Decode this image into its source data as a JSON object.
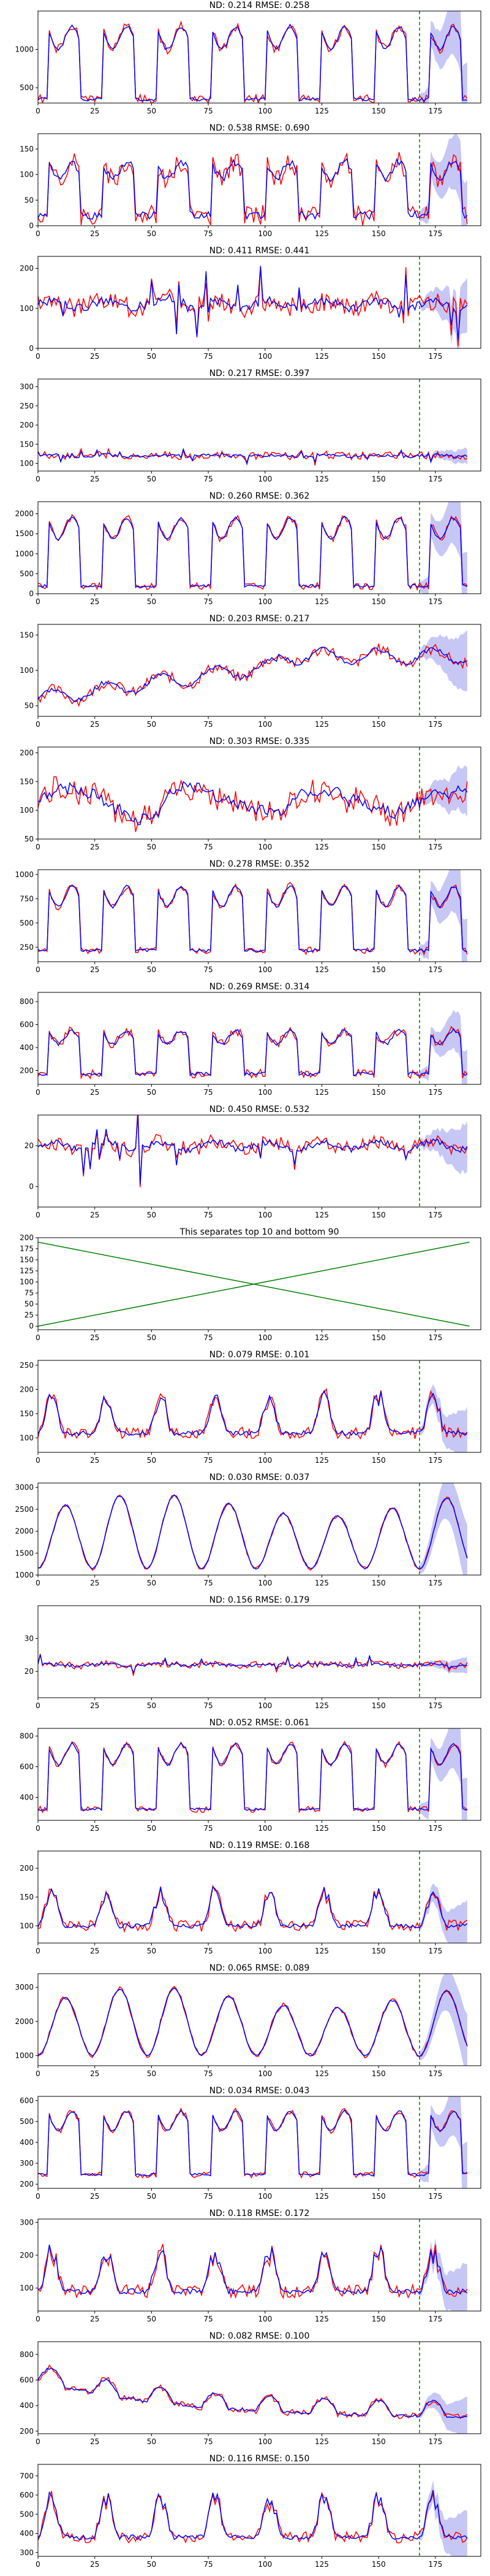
{
  "figure": {
    "title": ""
  },
  "colors": {
    "actual": "#ff0000",
    "forecast": "#0000ff",
    "band": "#9999ee",
    "split": "#008000",
    "separator": "#008000"
  },
  "chart_data": [
    {
      "type": "line",
      "title": "ND:  0.214 RMSE:  0.258",
      "xlim": [
        0,
        195
      ],
      "ylim": [
        300,
        1500
      ],
      "xticks": [
        0,
        25,
        50,
        75,
        100,
        125,
        150,
        175,
        200
      ],
      "yticks": [
        500,
        1000
      ],
      "shape": "square",
      "base": 300,
      "amp": 1000,
      "noise": 60,
      "forecast_start": 168,
      "seed": 1
    },
    {
      "type": "line",
      "title": "ND:  0.538 RMSE:  0.690",
      "xlim": [
        0,
        195
      ],
      "ylim": [
        0,
        180
      ],
      "xticks": [
        0,
        25,
        50,
        75,
        100,
        125,
        150,
        175,
        200
      ],
      "yticks": [
        0,
        50,
        100,
        150
      ],
      "shape": "square",
      "base": 15,
      "amp": 110,
      "noise": 20,
      "forecast_start": 168,
      "seed": 2
    },
    {
      "type": "line",
      "title": "ND:  0.411 RMSE:  0.441",
      "xlim": [
        0,
        195
      ],
      "ylim": [
        0,
        230
      ],
      "xticks": [
        0,
        25,
        50,
        75,
        100,
        125,
        150,
        175,
        200
      ],
      "yticks": [
        0,
        100,
        200
      ],
      "shape": "flat",
      "base": 110,
      "amp": 90,
      "noise": 25,
      "forecast_start": 168,
      "seed": 3
    },
    {
      "type": "line",
      "title": "ND:  0.217 RMSE:  0.397",
      "xlim": [
        0,
        195
      ],
      "ylim": [
        80,
        320
      ],
      "xticks": [
        0,
        25,
        50,
        75,
        100,
        125,
        150,
        175,
        200
      ],
      "yticks": [
        100,
        150,
        200,
        250,
        300
      ],
      "shape": "flat",
      "base": 120,
      "amp": 20,
      "noise": 10,
      "forecast_start": 168,
      "seed": 4
    },
    {
      "type": "line",
      "title": "ND:  0.260 RMSE:  0.362",
      "xlim": [
        0,
        195
      ],
      "ylim": [
        0,
        2300
      ],
      "xticks": [
        0,
        25,
        50,
        75,
        100,
        125,
        150,
        175,
        200
      ],
      "yticks": [
        0,
        500,
        1000,
        1500,
        2000
      ],
      "shape": "square",
      "base": 100,
      "amp": 1800,
      "noise": 90,
      "forecast_start": 168,
      "seed": 5
    },
    {
      "type": "line",
      "title": "ND:  0.203 RMSE:  0.217",
      "xlim": [
        0,
        195
      ],
      "ylim": [
        35,
        165
      ],
      "xticks": [
        0,
        25,
        50,
        75,
        100,
        125,
        150,
        175,
        200
      ],
      "yticks": [
        50,
        100,
        150
      ],
      "shape": "trend",
      "base": 60,
      "amp": 80,
      "noise": 8,
      "forecast_start": 168,
      "seed": 6
    },
    {
      "type": "line",
      "title": "ND:  0.303 RMSE:  0.335",
      "xlim": [
        0,
        195
      ],
      "ylim": [
        50,
        210
      ],
      "xticks": [
        0,
        25,
        50,
        75,
        100,
        125,
        150,
        175,
        200
      ],
      "yticks": [
        50,
        100,
        150,
        200
      ],
      "shape": "noisy",
      "base": 120,
      "amp": 40,
      "noise": 22,
      "forecast_start": 168,
      "seed": 7
    },
    {
      "type": "line",
      "title": "ND:  0.278 RMSE:  0.352",
      "xlim": [
        0,
        195
      ],
      "ylim": [
        100,
        1050
      ],
      "xticks": [
        0,
        25,
        50,
        75,
        100,
        125,
        150,
        175,
        200
      ],
      "yticks": [
        250,
        500,
        750,
        1000
      ],
      "shape": "square",
      "base": 180,
      "amp": 700,
      "noise": 40,
      "forecast_start": 168,
      "seed": 8
    },
    {
      "type": "line",
      "title": "ND:  0.269 RMSE:  0.314",
      "xlim": [
        0,
        195
      ],
      "ylim": [
        80,
        880
      ],
      "xticks": [
        0,
        25,
        50,
        75,
        100,
        125,
        150,
        175,
        200
      ],
      "yticks": [
        200,
        400,
        600,
        800
      ],
      "shape": "square",
      "base": 150,
      "amp": 400,
      "noise": 40,
      "forecast_start": 168,
      "seed": 9
    },
    {
      "type": "line",
      "title": "ND:  0.450 RMSE:  0.532",
      "xlim": [
        0,
        195
      ],
      "ylim": [
        -10,
        35
      ],
      "xticks": [
        0,
        25,
        50,
        75,
        100,
        125,
        150,
        175,
        200
      ],
      "yticks": [
        0,
        20
      ],
      "shape": "flat",
      "base": 20,
      "amp": 18,
      "noise": 4,
      "forecast_start": 168,
      "seed": 10
    },
    {
      "type": "line",
      "title": "This separates top 10 and bottom 90",
      "xlim": [
        0,
        195
      ],
      "ylim": [
        -8,
        200
      ],
      "xticks": [
        0,
        25,
        50,
        75,
        100,
        125,
        150,
        175,
        200
      ],
      "yticks": [
        0,
        25,
        50,
        75,
        100,
        125,
        150,
        175,
        200
      ],
      "shape": "separator",
      "forecast_start": null,
      "seed": 11
    },
    {
      "type": "line",
      "title": "ND:  0.079 RMSE:  0.101",
      "xlim": [
        0,
        195
      ],
      "ylim": [
        70,
        260
      ],
      "xticks": [
        0,
        25,
        50,
        75,
        100,
        125,
        150,
        175,
        200
      ],
      "yticks": [
        100,
        150,
        200,
        250
      ],
      "shape": "peaky",
      "base": 110,
      "amp": 90,
      "noise": 12,
      "forecast_start": 168,
      "seed": 12
    },
    {
      "type": "line",
      "title": "ND:  0.030 RMSE:  0.037",
      "xlim": [
        0,
        195
      ],
      "ylim": [
        1000,
        3100
      ],
      "xticks": [
        0,
        25,
        50,
        75,
        100,
        125,
        150,
        175,
        200
      ],
      "yticks": [
        1000,
        1500,
        2000,
        2500,
        3000
      ],
      "shape": "smooth",
      "base": 1150,
      "amp": 1700,
      "noise": 40,
      "forecast_start": 168,
      "seed": 13
    },
    {
      "type": "line",
      "title": "ND:  0.156 RMSE:  0.179",
      "xlim": [
        0,
        195
      ],
      "ylim": [
        12,
        40
      ],
      "xticks": [
        0,
        25,
        50,
        75,
        100,
        125,
        150,
        175,
        200
      ],
      "yticks": [
        20,
        30
      ],
      "shape": "flat",
      "base": 22,
      "amp": 3,
      "noise": 1,
      "forecast_start": 168,
      "seed": 14
    },
    {
      "type": "line",
      "title": "ND:  0.052 RMSE:  0.061",
      "xlim": [
        0,
        195
      ],
      "ylim": [
        250,
        850
      ],
      "xticks": [
        0,
        25,
        50,
        75,
        100,
        125,
        150,
        175,
        200
      ],
      "yticks": [
        400,
        600,
        800
      ],
      "shape": "square",
      "base": 300,
      "amp": 450,
      "noise": 20,
      "forecast_start": 168,
      "seed": 15
    },
    {
      "type": "line",
      "title": "ND:  0.119 RMSE:  0.168",
      "xlim": [
        0,
        195
      ],
      "ylim": [
        70,
        230
      ],
      "xticks": [
        0,
        25,
        50,
        75,
        100,
        125,
        150,
        175,
        200
      ],
      "yticks": [
        100,
        150,
        200
      ],
      "shape": "peaky",
      "base": 100,
      "amp": 70,
      "noise": 10,
      "forecast_start": 168,
      "seed": 16
    },
    {
      "type": "line",
      "title": "ND:  0.065 RMSE:  0.089",
      "xlim": [
        0,
        195
      ],
      "ylim": [
        700,
        3400
      ],
      "xticks": [
        0,
        25,
        50,
        75,
        100,
        125,
        150,
        175,
        200
      ],
      "yticks": [
        1000,
        2000,
        3000
      ],
      "shape": "smooth",
      "base": 1000,
      "amp": 2000,
      "noise": 70,
      "forecast_start": 168,
      "seed": 17
    },
    {
      "type": "line",
      "title": "ND:  0.034 RMSE:  0.043",
      "xlim": [
        0,
        195
      ],
      "ylim": [
        180,
        620
      ],
      "xticks": [
        0,
        25,
        50,
        75,
        100,
        125,
        150,
        175,
        200
      ],
      "yticks": [
        200,
        300,
        400,
        500,
        600
      ],
      "shape": "square",
      "base": 230,
      "amp": 320,
      "noise": 15,
      "forecast_start": 168,
      "seed": 18
    },
    {
      "type": "line",
      "title": "ND:  0.118 RMSE:  0.172",
      "xlim": [
        0,
        195
      ],
      "ylim": [
        30,
        310
      ],
      "xticks": [
        0,
        25,
        50,
        75,
        100,
        125,
        150,
        175,
        200
      ],
      "yticks": [
        100,
        200,
        300
      ],
      "shape": "peaky",
      "base": 90,
      "amp": 150,
      "noise": 20,
      "forecast_start": 168,
      "seed": 19
    },
    {
      "type": "line",
      "title": "ND:  0.082 RMSE:  0.100",
      "xlim": [
        0,
        195
      ],
      "ylim": [
        180,
        900
      ],
      "xticks": [
        0,
        25,
        50,
        75,
        100,
        125,
        150,
        175,
        200
      ],
      "yticks": [
        200,
        400,
        600,
        800
      ],
      "shape": "decay",
      "base": 300,
      "amp": 300,
      "noise": 25,
      "forecast_start": 168,
      "seed": 20
    },
    {
      "type": "line",
      "title": "ND:  0.116 RMSE:  0.150",
      "xlim": [
        0,
        195
      ],
      "ylim": [
        280,
        760
      ],
      "xticks": [
        0,
        25,
        50,
        75,
        100,
        125,
        150,
        175,
        200
      ],
      "yticks": [
        300,
        400,
        500,
        600,
        700
      ],
      "shape": "peaky",
      "base": 380,
      "amp": 250,
      "noise": 30,
      "forecast_start": 168,
      "seed": 21
    }
  ]
}
